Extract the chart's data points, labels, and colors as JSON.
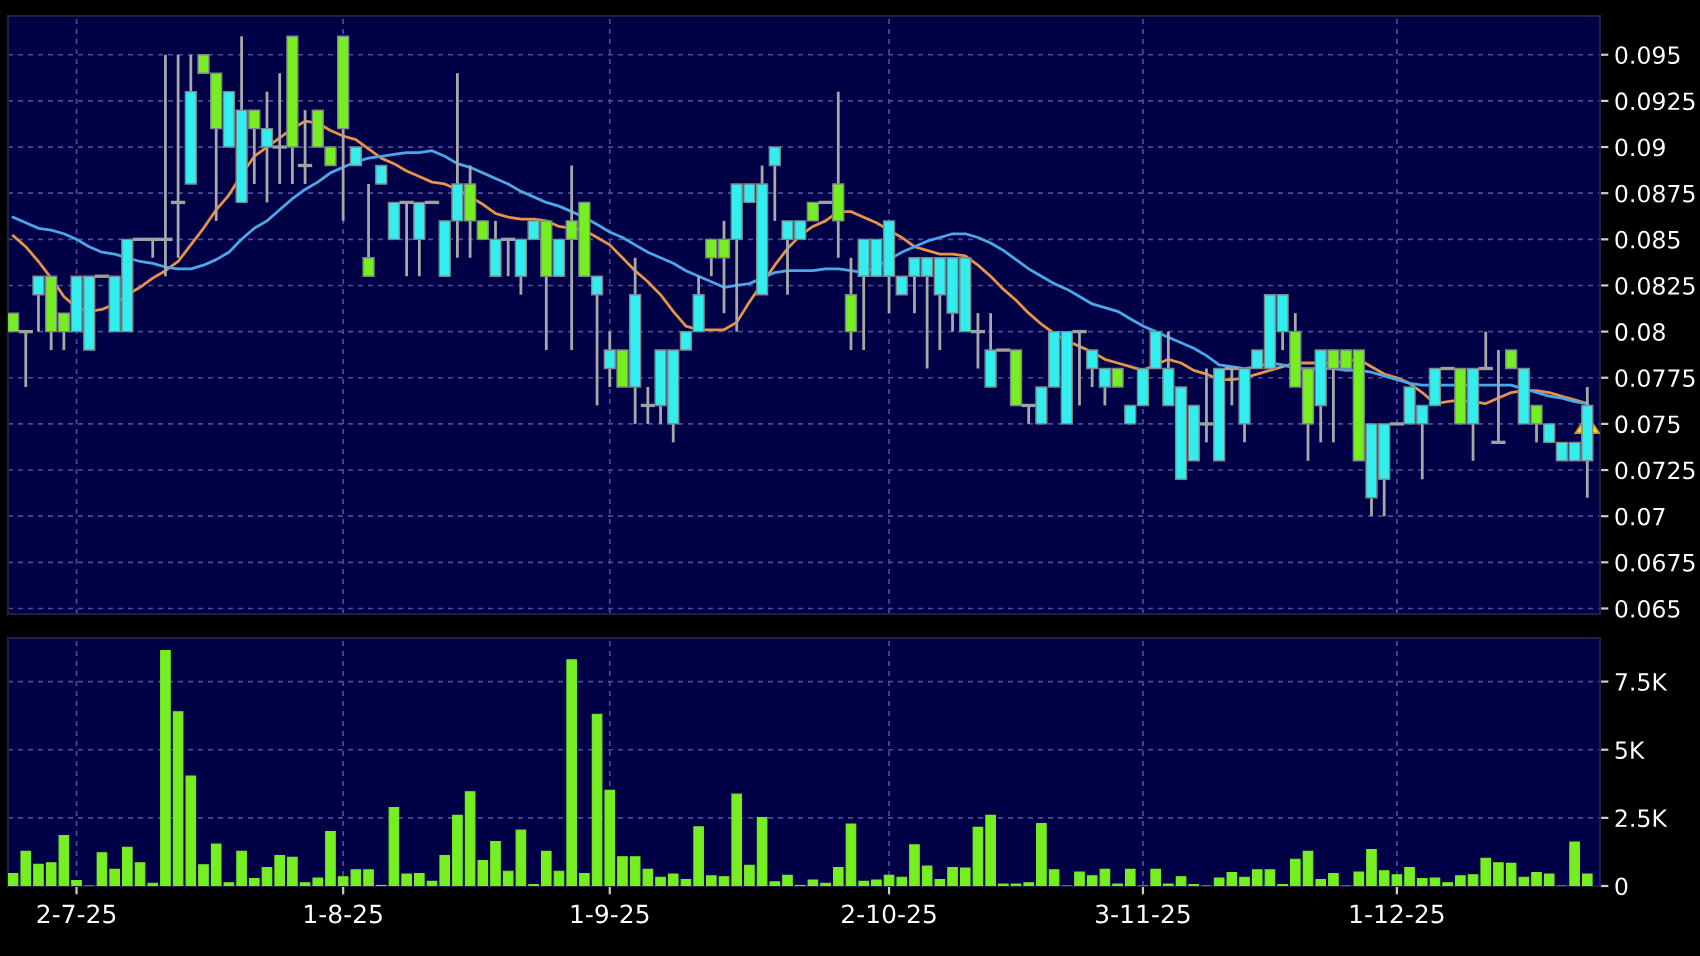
{
  "chart_data": [
    {
      "type": "candlestick",
      "categories": [
        null,
        null,
        null,
        null,
        null,
        null,
        null,
        null,
        null,
        null,
        null,
        null,
        null,
        null,
        null,
        null,
        null,
        null,
        null,
        null,
        null,
        null,
        null,
        null,
        null,
        null,
        null,
        null,
        null,
        null,
        null,
        null,
        null,
        null,
        null,
        null,
        null,
        null,
        null,
        null,
        null,
        null,
        null,
        null,
        null,
        null,
        null,
        null,
        null,
        null,
        null,
        null,
        null,
        null,
        null,
        null,
        null,
        null,
        null,
        null,
        null,
        null,
        null,
        null,
        null,
        null,
        null,
        null,
        null,
        null,
        null,
        null,
        null,
        null,
        null,
        null,
        null,
        null,
        null,
        null,
        null,
        null,
        null,
        null,
        null,
        null,
        null,
        null,
        null,
        null,
        null,
        null,
        null,
        null,
        null,
        null,
        null,
        null,
        null,
        null,
        null,
        null,
        null,
        null,
        null,
        null,
        null,
        null,
        null,
        null,
        null,
        null,
        null,
        null,
        null,
        null,
        null,
        null,
        null,
        null,
        null,
        null,
        null,
        null,
        null
      ],
      "ohlc": [
        [
          0.081,
          0.081,
          0.08,
          0.08
        ],
        [
          0.08,
          0.08,
          0.077,
          0.08
        ],
        [
          0.082,
          0.083,
          0.08,
          0.083
        ],
        [
          0.083,
          0.083,
          0.079,
          0.08
        ],
        [
          0.081,
          0.081,
          0.079,
          0.08
        ],
        [
          0.08,
          0.083,
          0.08,
          0.083
        ],
        [
          0.079,
          0.083,
          0.079,
          0.083
        ],
        [
          0.083,
          0.083,
          0.083,
          0.083
        ],
        [
          0.08,
          0.083,
          0.08,
          0.083
        ],
        [
          0.08,
          0.085,
          0.08,
          0.085
        ],
        [
          0.085,
          0.085,
          0.085,
          0.085
        ],
        [
          0.085,
          0.085,
          0.084,
          0.085
        ],
        [
          0.085,
          0.095,
          0.083,
          0.085
        ],
        [
          0.087,
          0.095,
          0.084,
          0.087
        ],
        [
          0.088,
          0.095,
          0.088,
          0.093
        ],
        [
          0.095,
          0.095,
          0.094,
          0.094
        ],
        [
          0.094,
          0.094,
          0.086,
          0.091
        ],
        [
          0.09,
          0.093,
          0.09,
          0.093
        ],
        [
          0.087,
          0.096,
          0.087,
          0.092
        ],
        [
          0.092,
          0.092,
          0.088,
          0.091
        ],
        [
          0.09,
          0.093,
          0.087,
          0.091
        ],
        [
          0.09,
          0.094,
          0.088,
          0.09
        ],
        [
          0.096,
          0.096,
          0.088,
          0.09
        ],
        [
          0.089,
          0.092,
          0.088,
          0.089
        ],
        [
          0.092,
          0.092,
          0.09,
          0.09
        ],
        [
          0.09,
          0.09,
          0.089,
          0.089
        ],
        [
          0.096,
          0.096,
          0.086,
          0.091
        ],
        [
          0.089,
          0.09,
          0.089,
          0.09
        ],
        [
          0.084,
          0.088,
          0.083,
          0.083
        ],
        [
          0.088,
          0.089,
          0.088,
          0.089
        ],
        [
          0.085,
          0.087,
          0.085,
          0.087
        ],
        [
          0.087,
          0.087,
          0.083,
          0.087
        ],
        [
          0.085,
          0.087,
          0.083,
          0.087
        ],
        [
          0.087,
          0.087,
          0.087,
          0.087
        ],
        [
          0.083,
          0.086,
          0.083,
          0.086
        ],
        [
          0.086,
          0.094,
          0.084,
          0.088
        ],
        [
          0.088,
          0.089,
          0.084,
          0.086
        ],
        [
          0.086,
          0.086,
          0.085,
          0.085
        ],
        [
          0.083,
          0.086,
          0.083,
          0.085
        ],
        [
          0.085,
          0.085,
          0.083,
          0.085
        ],
        [
          0.083,
          0.085,
          0.082,
          0.085
        ],
        [
          0.085,
          0.086,
          0.085,
          0.086
        ],
        [
          0.086,
          0.086,
          0.079,
          0.083
        ],
        [
          0.083,
          0.085,
          0.083,
          0.085
        ],
        [
          0.086,
          0.089,
          0.079,
          0.085
        ],
        [
          0.087,
          0.087,
          0.083,
          0.083
        ],
        [
          0.082,
          0.083,
          0.076,
          0.083
        ],
        [
          0.078,
          0.08,
          0.077,
          0.079
        ],
        [
          0.079,
          0.079,
          0.077,
          0.077
        ],
        [
          0.077,
          0.084,
          0.075,
          0.082
        ],
        [
          0.076,
          0.077,
          0.075,
          0.076
        ],
        [
          0.076,
          0.079,
          0.075,
          0.079
        ],
        [
          0.075,
          0.079,
          0.074,
          0.079
        ],
        [
          0.079,
          0.08,
          0.079,
          0.08
        ],
        [
          0.08,
          0.083,
          0.08,
          0.082
        ],
        [
          0.085,
          0.085,
          0.083,
          0.084
        ],
        [
          0.085,
          0.086,
          0.081,
          0.084
        ],
        [
          0.085,
          0.088,
          0.08,
          0.088
        ],
        [
          0.087,
          0.088,
          0.087,
          0.088
        ],
        [
          0.082,
          0.089,
          0.082,
          0.088
        ],
        [
          0.089,
          0.09,
          0.086,
          0.09
        ],
        [
          0.085,
          0.086,
          0.082,
          0.086
        ],
        [
          0.085,
          0.086,
          0.085,
          0.086
        ],
        [
          0.087,
          0.087,
          0.086,
          0.086
        ],
        [
          0.087,
          0.087,
          0.087,
          0.087
        ],
        [
          0.088,
          0.093,
          0.084,
          0.086
        ],
        [
          0.082,
          0.084,
          0.079,
          0.08
        ],
        [
          0.083,
          0.085,
          0.079,
          0.085
        ],
        [
          0.083,
          0.085,
          0.083,
          0.085
        ],
        [
          0.083,
          0.086,
          0.081,
          0.086
        ],
        [
          0.082,
          0.083,
          0.082,
          0.083
        ],
        [
          0.083,
          0.084,
          0.081,
          0.084
        ],
        [
          0.083,
          0.084,
          0.078,
          0.084
        ],
        [
          0.082,
          0.084,
          0.079,
          0.084
        ],
        [
          0.081,
          0.084,
          0.08,
          0.084
        ],
        [
          0.08,
          0.084,
          0.08,
          0.084
        ],
        [
          0.08,
          0.081,
          0.078,
          0.08
        ],
        [
          0.077,
          0.081,
          0.077,
          0.079
        ],
        [
          0.079,
          0.079,
          0.079,
          0.079
        ],
        [
          0.079,
          0.079,
          0.076,
          0.076
        ],
        [
          0.076,
          0.076,
          0.075,
          0.076
        ],
        [
          0.075,
          0.077,
          0.075,
          0.077
        ],
        [
          0.077,
          0.08,
          0.077,
          0.08
        ],
        [
          0.075,
          0.08,
          0.075,
          0.08
        ],
        [
          0.08,
          0.08,
          0.076,
          0.08
        ],
        [
          0.078,
          0.079,
          0.077,
          0.079
        ],
        [
          0.077,
          0.078,
          0.076,
          0.078
        ],
        [
          0.078,
          0.078,
          0.077,
          0.077
        ],
        [
          0.075,
          0.076,
          0.075,
          0.076
        ],
        [
          0.076,
          0.078,
          0.076,
          0.078
        ],
        [
          0.078,
          0.08,
          0.078,
          0.08
        ],
        [
          0.076,
          0.08,
          0.076,
          0.078
        ],
        [
          0.072,
          0.077,
          0.072,
          0.077
        ],
        [
          0.073,
          0.076,
          0.073,
          0.076
        ],
        [
          0.075,
          0.078,
          0.074,
          0.075
        ],
        [
          0.073,
          0.078,
          0.073,
          0.078
        ],
        [
          0.078,
          0.078,
          0.076,
          0.078
        ],
        [
          0.075,
          0.078,
          0.074,
          0.078
        ],
        [
          0.078,
          0.079,
          0.078,
          0.079
        ],
        [
          0.078,
          0.082,
          0.078,
          0.082
        ],
        [
          0.08,
          0.082,
          0.079,
          0.082
        ],
        [
          0.08,
          0.081,
          0.077,
          0.077
        ],
        [
          0.078,
          0.078,
          0.073,
          0.075
        ],
        [
          0.076,
          0.079,
          0.074,
          0.079
        ],
        [
          0.079,
          0.079,
          0.074,
          0.078
        ],
        [
          0.079,
          0.079,
          0.078,
          0.078
        ],
        [
          0.079,
          0.079,
          0.073,
          0.073
        ],
        [
          0.071,
          0.075,
          0.07,
          0.075
        ],
        [
          0.072,
          0.075,
          0.07,
          0.075
        ],
        [
          0.075,
          0.075,
          0.075,
          0.075
        ],
        [
          0.075,
          0.077,
          0.075,
          0.077
        ],
        [
          0.075,
          0.076,
          0.072,
          0.076
        ],
        [
          0.076,
          0.078,
          0.076,
          0.078
        ],
        [
          0.078,
          0.078,
          0.078,
          0.078
        ],
        [
          0.078,
          0.078,
          0.075,
          0.075
        ],
        [
          0.075,
          0.078,
          0.073,
          0.078
        ],
        [
          0.078,
          0.08,
          0.078,
          0.078
        ],
        [
          0.074,
          0.079,
          0.074,
          0.074
        ],
        [
          0.079,
          0.079,
          0.078,
          0.078
        ],
        [
          0.075,
          0.078,
          0.075,
          0.078
        ],
        [
          0.076,
          0.076,
          0.074,
          0.075
        ],
        [
          0.074,
          0.075,
          0.074,
          0.075
        ],
        [
          0.073,
          0.074,
          0.073,
          0.074
        ],
        [
          0.073,
          0.074,
          0.073,
          0.074
        ],
        [
          0.073,
          0.077,
          0.071,
          0.076
        ]
      ],
      "colors": [
        "#77ee22",
        "#a0a0a0",
        "#33eeee",
        "#77ee22",
        "#77ee22",
        "#33eeee",
        "#33eeee",
        "#a0a0a0",
        "#33eeee",
        "#33eeee",
        "#a0a0a0",
        "#a0a0a0",
        "#a0a0a0",
        "#a0a0a0",
        "#33eeee",
        "#77ee22",
        "#77ee22",
        "#33eeee",
        "#33eeee",
        "#77ee22",
        "#33eeee",
        "#a0a0a0",
        "#77ee22",
        "#a0a0a0",
        "#77ee22",
        "#77ee22",
        "#77ee22",
        "#33eeee",
        "#77ee22",
        "#33eeee",
        "#33eeee",
        "#a0a0a0",
        "#33eeee",
        "#a0a0a0",
        "#33eeee",
        "#33eeee",
        "#77ee22",
        "#77ee22",
        "#33eeee",
        "#a0a0a0",
        "#33eeee",
        "#33eeee",
        "#77ee22",
        "#33eeee",
        "#77ee22",
        "#77ee22",
        "#33eeee",
        "#33eeee",
        "#77ee22",
        "#33eeee",
        "#a0a0a0",
        "#33eeee",
        "#33eeee",
        "#33eeee",
        "#33eeee",
        "#77ee22",
        "#77ee22",
        "#33eeee",
        "#33eeee",
        "#33eeee",
        "#33eeee",
        "#33eeee",
        "#33eeee",
        "#77ee22",
        "#a0a0a0",
        "#77ee22",
        "#77ee22",
        "#33eeee",
        "#33eeee",
        "#33eeee",
        "#33eeee",
        "#33eeee",
        "#33eeee",
        "#33eeee",
        "#33eeee",
        "#33eeee",
        "#a0a0a0",
        "#33eeee",
        "#a0a0a0",
        "#77ee22",
        "#a0a0a0",
        "#33eeee",
        "#33eeee",
        "#33eeee",
        "#a0a0a0",
        "#33eeee",
        "#33eeee",
        "#77ee22",
        "#33eeee",
        "#33eeee",
        "#33eeee",
        "#33eeee",
        "#33eeee",
        "#33eeee",
        "#a0a0a0",
        "#33eeee",
        "#a0a0a0",
        "#33eeee",
        "#33eeee",
        "#33eeee",
        "#33eeee",
        "#77ee22",
        "#77ee22",
        "#33eeee",
        "#77ee22",
        "#77ee22",
        "#77ee22",
        "#33eeee",
        "#33eeee",
        "#a0a0a0",
        "#33eeee",
        "#33eeee",
        "#33eeee",
        "#a0a0a0",
        "#77ee22",
        "#33eeee",
        "#a0a0a0",
        "#a0a0a0",
        "#77ee22",
        "#33eeee",
        "#77ee22",
        "#33eeee",
        "#33eeee",
        "#33eeee",
        "#33eeee"
      ],
      "series": [
        {
          "type": "line",
          "color": "#e8924a",
          "values": [
            0.0852,
            0.0846,
            0.0838,
            0.0829,
            0.0819,
            0.0813,
            0.0811,
            0.0812,
            0.0815,
            0.082,
            0.0824,
            0.0829,
            0.0833,
            0.0838,
            0.0847,
            0.0856,
            0.0866,
            0.0874,
            0.0885,
            0.0895,
            0.09,
            0.0905,
            0.091,
            0.0914,
            0.0913,
            0.0909,
            0.0906,
            0.0904,
            0.0899,
            0.0894,
            0.0891,
            0.0887,
            0.0884,
            0.0881,
            0.088,
            0.0877,
            0.0873,
            0.0869,
            0.0864,
            0.0862,
            0.0861,
            0.0861,
            0.086,
            0.0857,
            0.0856,
            0.0855,
            0.0851,
            0.0847,
            0.084,
            0.0833,
            0.0827,
            0.082,
            0.0811,
            0.0803,
            0.0801,
            0.0801,
            0.0801,
            0.0805,
            0.0816,
            0.0826,
            0.0836,
            0.0845,
            0.0852,
            0.0857,
            0.086,
            0.0865,
            0.0865,
            0.0862,
            0.0859,
            0.0855,
            0.0851,
            0.0846,
            0.0844,
            0.0842,
            0.0842,
            0.0841,
            0.0836,
            0.083,
            0.0823,
            0.0817,
            0.081,
            0.0804,
            0.0799,
            0.0795,
            0.0792,
            0.0789,
            0.0785,
            0.0783,
            0.0781,
            0.0779,
            0.0782,
            0.0785,
            0.0783,
            0.0779,
            0.0777,
            0.0774,
            0.0774,
            0.0775,
            0.0777,
            0.0779,
            0.0781,
            0.0783,
            0.0783,
            0.0783,
            0.0783,
            0.0784,
            0.0785,
            0.0781,
            0.0777,
            0.0775,
            0.0772,
            0.0767,
            0.0761,
            0.0762,
            0.0763,
            0.0762,
            0.0761,
            0.0764,
            0.0767,
            0.0768,
            0.0768,
            0.0767,
            0.0765,
            0.0763,
            0.0761
          ]
        },
        {
          "type": "line",
          "color": "#4aa8e8",
          "values": [
            0.0862,
            0.0859,
            0.0856,
            0.0855,
            0.0853,
            0.085,
            0.0846,
            0.0843,
            0.0842,
            0.084,
            0.0838,
            0.0837,
            0.0835,
            0.0834,
            0.0834,
            0.0836,
            0.0839,
            0.0843,
            0.085,
            0.0856,
            0.086,
            0.0866,
            0.0872,
            0.0877,
            0.0881,
            0.0886,
            0.0889,
            0.0892,
            0.0894,
            0.0895,
            0.0896,
            0.0897,
            0.0897,
            0.0898,
            0.0895,
            0.0891,
            0.0889,
            0.0886,
            0.0883,
            0.088,
            0.0876,
            0.0873,
            0.087,
            0.0868,
            0.0865,
            0.0862,
            0.0858,
            0.0854,
            0.0851,
            0.0847,
            0.0843,
            0.084,
            0.0837,
            0.0833,
            0.083,
            0.0827,
            0.0824,
            0.0825,
            0.0826,
            0.0829,
            0.0832,
            0.0833,
            0.0833,
            0.0833,
            0.0834,
            0.0834,
            0.0833,
            0.0832,
            0.0835,
            0.0839,
            0.0843,
            0.0846,
            0.0849,
            0.0851,
            0.0853,
            0.0853,
            0.0851,
            0.0848,
            0.0844,
            0.0839,
            0.0834,
            0.083,
            0.0826,
            0.0823,
            0.0819,
            0.0815,
            0.0813,
            0.0811,
            0.0807,
            0.0803,
            0.08,
            0.0797,
            0.0794,
            0.0791,
            0.0787,
            0.0782,
            0.0781,
            0.078,
            0.0781,
            0.0783,
            0.0782,
            0.078,
            0.078,
            0.078,
            0.078,
            0.0779,
            0.0779,
            0.0778,
            0.0776,
            0.0774,
            0.0772,
            0.0771,
            0.0771,
            0.0771,
            0.0771,
            0.0771,
            0.0771,
            0.0771,
            0.0771,
            0.0769,
            0.0767,
            0.0765,
            0.0764,
            0.0762,
            0.0761
          ]
        }
      ],
      "ylim": [
        0.0647,
        0.0971
      ],
      "yticks": [
        0.065,
        0.0675,
        0.07,
        0.0725,
        0.075,
        0.0775,
        0.08,
        0.0825,
        0.085,
        0.0875,
        0.09,
        0.0925,
        0.095
      ],
      "grid": true,
      "tick_labels": "y"
    },
    {
      "type": "bar",
      "categories": [
        null,
        null,
        null,
        null,
        null,
        "2-7-25",
        null,
        null,
        null,
        null,
        null,
        null,
        null,
        null,
        null,
        null,
        null,
        null,
        null,
        null,
        null,
        null,
        null,
        null,
        null,
        null,
        "1-8-25",
        null,
        null,
        null,
        null,
        null,
        null,
        null,
        null,
        null,
        null,
        null,
        null,
        null,
        null,
        null,
        null,
        null,
        null,
        null,
        null,
        "1-9-25",
        null,
        null,
        null,
        null,
        null,
        null,
        null,
        null,
        null,
        null,
        null,
        null,
        null,
        null,
        null,
        null,
        null,
        null,
        null,
        null,
        null,
        "2-10-25",
        null,
        null,
        null,
        null,
        null,
        null,
        null,
        null,
        null,
        null,
        null,
        null,
        null,
        null,
        null,
        null,
        null,
        null,
        null,
        "3-11-25",
        null,
        null,
        null,
        null,
        null,
        null,
        null,
        null,
        null,
        null,
        null,
        null,
        null,
        null,
        null,
        null,
        null,
        null,
        null,
        "1-12-25",
        null,
        null,
        null,
        null,
        null,
        null,
        null,
        null,
        null,
        null,
        null,
        null,
        null,
        null,
        null
      ],
      "values": [
        460,
        1270,
        800,
        850,
        1850,
        200,
        0,
        1220,
        610,
        1420,
        850,
        100,
        8640,
        6390,
        4030,
        780,
        1540,
        120,
        1270,
        270,
        680,
        1120,
        1050,
        120,
        290,
        2000,
        340,
        590,
        590,
        20,
        2880,
        440,
        460,
        170,
        1120,
        2590,
        3460,
        930,
        1630,
        540,
        2050,
        50,
        1270,
        540,
        8300,
        460,
        6300,
        3510,
        1070,
        1070,
        610,
        320,
        440,
        240,
        2170,
        370,
        340,
        3370,
        760,
        2510,
        150,
        390,
        20,
        220,
        100,
        680,
        2270,
        170,
        220,
        390,
        320,
        1510,
        730,
        240,
        680,
        660,
        2150,
        2590,
        70,
        70,
        120,
        2290,
        590,
        0,
        510,
        370,
        610,
        70,
        610,
        0,
        610,
        70,
        340,
        50,
        0,
        290,
        490,
        320,
        590,
        590,
        50,
        980,
        1270,
        240,
        460,
        0,
        510,
        1340,
        560,
        410,
        680,
        270,
        290,
        120,
        370,
        410,
        1020,
        850,
        830,
        320,
        490,
        440,
        0,
        1610,
        440
      ],
      "color": "#77ee22",
      "ylim": [
        0,
        9100
      ],
      "yticks": [
        0,
        {
          "value": 2500,
          "label": "2.5K"
        },
        {
          "value": 5000,
          "label": "5K"
        },
        {
          "value": 7500,
          "label": "7.5K"
        }
      ],
      "grid": true
    }
  ]
}
